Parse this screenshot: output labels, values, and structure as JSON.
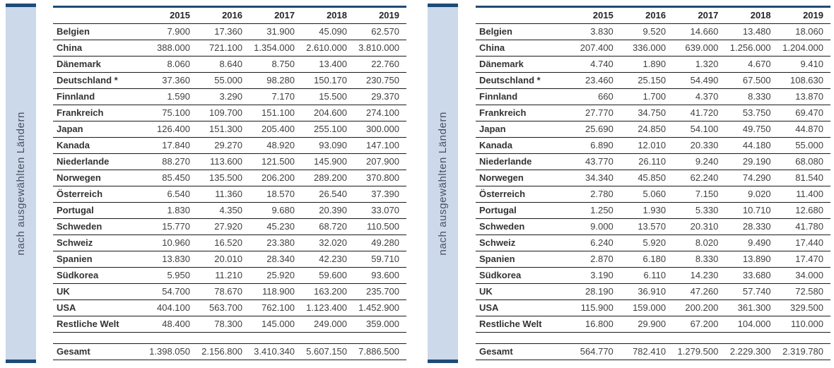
{
  "sidebar_label": "nach ausgewählten Ländern",
  "years": [
    "2015",
    "2016",
    "2017",
    "2018",
    "2019"
  ],
  "colors": {
    "accent_navy": "#1f4a78",
    "band_fill": "#ccd9ea",
    "row_line": "#1a1a1a",
    "label_text": "#333333",
    "value_text": "#404040"
  },
  "tables": [
    {
      "name": "left-table",
      "rows": [
        {
          "label": "Belgien",
          "values": [
            "7.900",
            "17.360",
            "31.900",
            "45.090",
            "62.570"
          ]
        },
        {
          "label": "China",
          "values": [
            "388.000",
            "721.100",
            "1.354.000",
            "2.610.000",
            "3.810.000"
          ]
        },
        {
          "label": "Dänemark",
          "values": [
            "8.060",
            "8.640",
            "8.750",
            "13.400",
            "22.760"
          ]
        },
        {
          "label": "Deutschland *",
          "values": [
            "37.360",
            "55.000",
            "98.280",
            "150.170",
            "230.750"
          ]
        },
        {
          "label": "Finnland",
          "values": [
            "1.590",
            "3.290",
            "7.170",
            "15.500",
            "29.370"
          ]
        },
        {
          "label": "Frankreich",
          "values": [
            "75.100",
            "109.700",
            "151.100",
            "204.600",
            "274.100"
          ]
        },
        {
          "label": "Japan",
          "values": [
            "126.400",
            "151.300",
            "205.400",
            "255.100",
            "300.000"
          ]
        },
        {
          "label": "Kanada",
          "values": [
            "17.840",
            "29.270",
            "48.920",
            "93.090",
            "147.100"
          ]
        },
        {
          "label": "Niederlande",
          "values": [
            "88.270",
            "113.600",
            "121.500",
            "145.900",
            "207.900"
          ]
        },
        {
          "label": "Norwegen",
          "values": [
            "85.450",
            "135.500",
            "206.200",
            "289.200",
            "370.800"
          ]
        },
        {
          "label": "Österreich",
          "values": [
            "6.540",
            "11.360",
            "18.570",
            "26.540",
            "37.390"
          ]
        },
        {
          "label": "Portugal",
          "values": [
            "1.830",
            "4.350",
            "9.680",
            "20.390",
            "33.070"
          ]
        },
        {
          "label": "Schweden",
          "values": [
            "15.770",
            "27.920",
            "45.230",
            "68.720",
            "110.500"
          ]
        },
        {
          "label": "Schweiz",
          "values": [
            "10.960",
            "16.520",
            "23.380",
            "32.020",
            "49.280"
          ]
        },
        {
          "label": "Spanien",
          "values": [
            "13.830",
            "20.010",
            "28.340",
            "42.230",
            "59.710"
          ]
        },
        {
          "label": "Südkorea",
          "values": [
            "5.950",
            "11.210",
            "25.920",
            "59.600",
            "93.600"
          ]
        },
        {
          "label": "UK",
          "values": [
            "54.700",
            "78.670",
            "118.900",
            "163.200",
            "235.700"
          ]
        },
        {
          "label": "USA",
          "values": [
            "404.100",
            "563.700",
            "762.100",
            "1.123.400",
            "1.452.900"
          ]
        },
        {
          "label": "Restliche Welt",
          "values": [
            "48.400",
            "78.300",
            "145.000",
            "249.000",
            "359.000"
          ]
        }
      ],
      "total": {
        "label": "Gesamt",
        "values": [
          "1.398.050",
          "2.156.800",
          "3.410.340",
          "5.607.150",
          "7.886.500"
        ]
      }
    },
    {
      "name": "right-table",
      "rows": [
        {
          "label": "Belgien",
          "values": [
            "3.830",
            "9.520",
            "14.660",
            "13.480",
            "18.060"
          ]
        },
        {
          "label": "China",
          "values": [
            "207.400",
            "336.000",
            "639.000",
            "1.256.000",
            "1.204.000"
          ]
        },
        {
          "label": "Dänemark",
          "values": [
            "4.740",
            "1.890",
            "1.320",
            "4.670",
            "9.410"
          ]
        },
        {
          "label": "Deutschland *",
          "values": [
            "23.460",
            "25.150",
            "54.490",
            "67.500",
            "108.630"
          ]
        },
        {
          "label": "Finnland",
          "values": [
            "660",
            "1.700",
            "4.370",
            "8.330",
            "13.870"
          ]
        },
        {
          "label": "Frankreich",
          "values": [
            "27.770",
            "34.750",
            "41.720",
            "53.750",
            "69.470"
          ]
        },
        {
          "label": "Japan",
          "values": [
            "25.690",
            "24.850",
            "54.100",
            "49.750",
            "44.870"
          ]
        },
        {
          "label": "Kanada",
          "values": [
            "6.890",
            "12.010",
            "20.330",
            "44.180",
            "55.000"
          ]
        },
        {
          "label": "Niederlande",
          "values": [
            "43.770",
            "26.110",
            "9.240",
            "29.190",
            "68.080"
          ]
        },
        {
          "label": "Norwegen",
          "values": [
            "34.340",
            "45.850",
            "62.240",
            "74.290",
            "81.540"
          ]
        },
        {
          "label": "Österreich",
          "values": [
            "2.780",
            "5.060",
            "7.150",
            "9.020",
            "11.400"
          ]
        },
        {
          "label": "Portugal",
          "values": [
            "1.250",
            "1.930",
            "5.330",
            "10.710",
            "12.680"
          ]
        },
        {
          "label": "Schweden",
          "values": [
            "9.000",
            "13.570",
            "20.310",
            "28.330",
            "41.780"
          ]
        },
        {
          "label": "Schweiz",
          "values": [
            "6.240",
            "5.920",
            "8.020",
            "9.490",
            "17.440"
          ]
        },
        {
          "label": "Spanien",
          "values": [
            "2.870",
            "6.180",
            "8.330",
            "13.890",
            "17.470"
          ]
        },
        {
          "label": "Südkorea",
          "values": [
            "3.190",
            "6.110",
            "14.230",
            "33.680",
            "34.000"
          ]
        },
        {
          "label": "UK",
          "values": [
            "28.190",
            "36.910",
            "47.260",
            "57.740",
            "72.580"
          ]
        },
        {
          "label": "USA",
          "values": [
            "115.900",
            "159.000",
            "200.200",
            "361.300",
            "329.500"
          ]
        },
        {
          "label": "Restliche Welt",
          "values": [
            "16.800",
            "29.900",
            "67.200",
            "104.000",
            "110.000"
          ]
        }
      ],
      "total": {
        "label": "Gesamt",
        "values": [
          "564.770",
          "782.410",
          "1.279.500",
          "2.229.300",
          "2.319.780"
        ]
      }
    }
  ]
}
